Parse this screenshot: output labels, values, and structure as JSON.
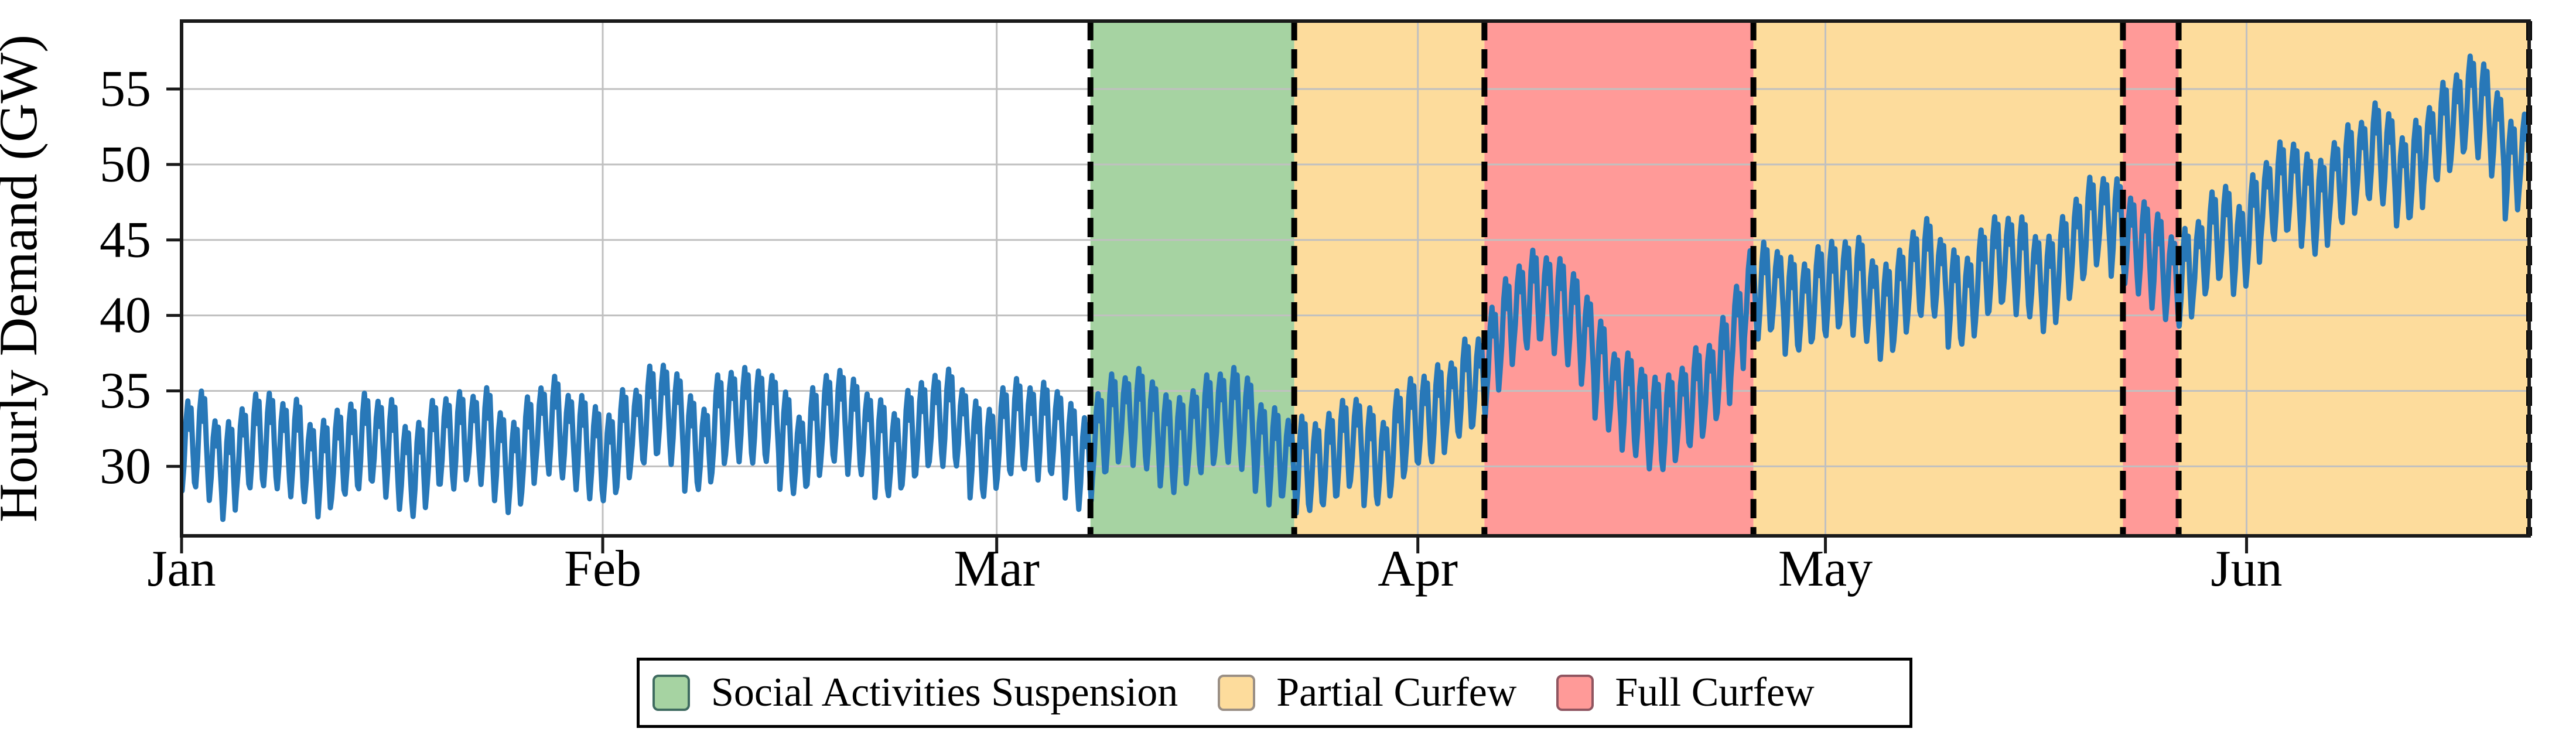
{
  "figure": {
    "background_color": "#ffffff",
    "plot_background_color": "#ffffff",
    "grid_color": "#c0c0c0",
    "spine_color": "#1a1a1a",
    "boundary_dash_color": "#000000",
    "tick_color": "#1a1a1a",
    "text_color": "#000000"
  },
  "chart_data": {
    "type": "line",
    "title": "",
    "xlabel": "",
    "ylabel": "Hourly Demand (GW)",
    "x_unit": "days since Jan 1 (leap year, Jan-Jun)",
    "grid": true,
    "legend_position": "bottom-center",
    "ylim": [
      25.4,
      59.5
    ],
    "yticks": [
      30,
      35,
      40,
      45,
      50,
      55
    ],
    "xlim_days": [
      0,
      172.8
    ],
    "month_ticks": [
      {
        "label": "Jan",
        "day": 0
      },
      {
        "label": "Feb",
        "day": 31
      },
      {
        "label": "Mar",
        "day": 60
      },
      {
        "label": "Apr",
        "day": 91
      },
      {
        "label": "May",
        "day": 121
      },
      {
        "label": "Jun",
        "day": 152
      }
    ],
    "regions": [
      {
        "label": "Social Activities Suspension",
        "color": "#a6d3a2",
        "start_day": 66.9,
        "end_day": 81.9,
        "start_date": "Mar 8",
        "end_date": "Mar 22"
      },
      {
        "label": "Partial Curfew",
        "color": "#fddc9c",
        "start_day": 81.9,
        "end_day": 95.9,
        "start_date": "Mar 22",
        "end_date": "Apr 6"
      },
      {
        "label": "Full Curfew",
        "color": "#ff9a98",
        "start_day": 95.9,
        "end_day": 115.7,
        "start_date": "Apr 6",
        "end_date": "Apr 26"
      },
      {
        "label": "Partial Curfew",
        "color": "#fddc9c",
        "start_day": 115.7,
        "end_day": 142.9,
        "start_date": "Apr 26",
        "end_date": "May 23"
      },
      {
        "label": "Full Curfew",
        "color": "#ff9a98",
        "start_day": 142.9,
        "end_day": 147.0,
        "start_date": "May 23",
        "end_date": "May 27"
      },
      {
        "label": "Partial Curfew",
        "color": "#fddc9c",
        "start_day": 147.0,
        "end_day": 172.8,
        "start_date": "May 27",
        "end_date": "Jun 21"
      }
    ],
    "legend": [
      {
        "label": "Social Activities Suspension",
        "color": "#a6d3a2",
        "edge": "#3f6b60"
      },
      {
        "label": "Partial Curfew",
        "color": "#fddc9c",
        "edge": "#9a8f85"
      },
      {
        "label": "Full Curfew",
        "color": "#ff9a98",
        "edge": "#8f5560"
      }
    ],
    "series": [
      {
        "name": "Hourly Demand",
        "color": "#2878b8",
        "line_width": 9,
        "description": "Hourly electricity demand; shows ~1-day oscillation of about +/-3 GW around a daily mean. daily_mean_gw[i] is the estimated mean demand for day i counted from Jan 1.",
        "daily_half_amplitude_gw": 3.1,
        "daily_mean_gw": [
          31.2,
          31.4,
          30.2,
          29.8,
          31.0,
          31.3,
          31.5,
          31.4,
          31.2,
          29.9,
          29.5,
          30.8,
          31.2,
          31.4,
          31.3,
          31.1,
          30.0,
          29.6,
          30.9,
          31.5,
          31.8,
          32.0,
          31.6,
          30.4,
          30.0,
          31.4,
          32.2,
          32.4,
          32.0,
          31.6,
          30.6,
          30.2,
          31.8,
          32.6,
          33.2,
          33.4,
          33.0,
          31.6,
          31.0,
          32.4,
          33.3,
          33.5,
          33.2,
          32.8,
          31.4,
          30.8,
          32.0,
          32.8,
          33.0,
          32.6,
          32.2,
          30.9,
          30.4,
          31.8,
          32.6,
          33.0,
          32.8,
          32.4,
          31.2,
          30.8,
          31.8,
          32.4,
          32.6,
          32.3,
          31.9,
          30.7,
          30.2,
          32.0,
          32.6,
          33.0,
          33.2,
          32.8,
          31.5,
          31.0,
          32.2,
          32.9,
          33.3,
          33.0,
          32.6,
          31.3,
          30.6,
          30.2,
          29.8,
          30.0,
          30.5,
          30.9,
          31.4,
          30.6,
          30.3,
          31.6,
          32.4,
          33.0,
          33.6,
          34.2,
          34.8,
          35.4,
          37.6,
          39.2,
          40.2,
          40.8,
          41.2,
          40.6,
          39.4,
          38.0,
          36.4,
          35.0,
          34.0,
          33.2,
          32.8,
          33.0,
          33.6,
          34.2,
          35.2,
          36.8,
          38.8,
          41.0,
          41.4,
          41.8,
          40.6,
          40.2,
          41.2,
          41.8,
          42.2,
          41.6,
          40.6,
          40.2,
          41.4,
          42.4,
          42.8,
          42.4,
          41.2,
          40.8,
          42.2,
          43.2,
          43.8,
          43.2,
          42.2,
          41.8,
          43.6,
          44.8,
          45.6,
          46.2,
          45.8,
          45.0,
          44.2,
          43.2,
          42.4,
          42.6,
          43.4,
          44.6,
          45.4,
          44.4,
          46.0,
          47.2,
          48.0,
          48.6,
          47.6,
          46.8,
          48.4,
          49.4,
          50.2,
          50.6,
          50.0,
          48.8,
          49.8,
          51.0,
          51.8,
          53.0,
          54.2,
          53.4,
          51.6,
          49.4,
          50.8
        ]
      }
    ]
  }
}
